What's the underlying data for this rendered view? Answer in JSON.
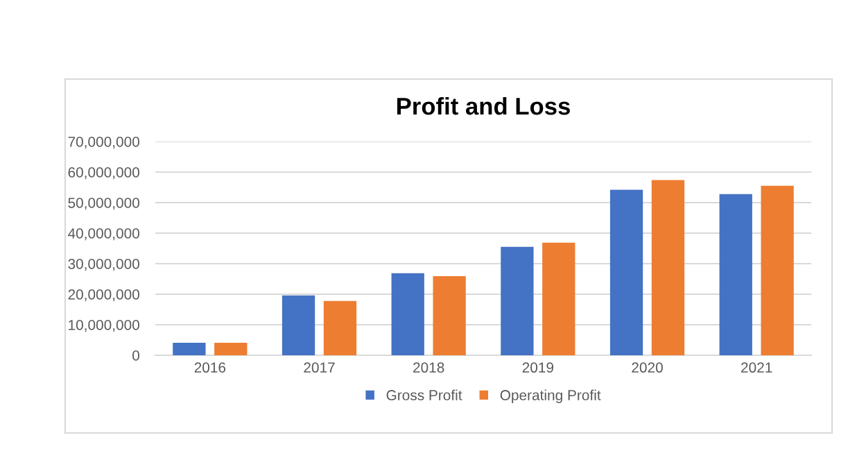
{
  "chart_data": {
    "type": "bar",
    "title": "Profit and Loss",
    "categories": [
      "2016",
      "2017",
      "2018",
      "2019",
      "2020",
      "2021"
    ],
    "series": [
      {
        "name": "Gross Profit",
        "color": "#4472c4",
        "values": [
          4100000,
          19600000,
          26900000,
          35500000,
          54200000,
          52800000
        ]
      },
      {
        "name": "Operating Profit",
        "color": "#ed7d31",
        "values": [
          4100000,
          17800000,
          25900000,
          36900000,
          57400000,
          55500000
        ]
      }
    ],
    "ylim": [
      0,
      70000000
    ],
    "yticks": [
      {
        "value": 0,
        "label": "0"
      },
      {
        "value": 10000000,
        "label": "10,000,000"
      },
      {
        "value": 20000000,
        "label": "20,000,000"
      },
      {
        "value": 30000000,
        "label": "30,000,000"
      },
      {
        "value": 40000000,
        "label": "40,000,000"
      },
      {
        "value": 50000000,
        "label": "50,000,000"
      },
      {
        "value": 60000000,
        "label": "60,000,000"
      },
      {
        "value": 70000000,
        "label": "70,000,000"
      }
    ],
    "grid": "y",
    "legend": "bottom"
  }
}
